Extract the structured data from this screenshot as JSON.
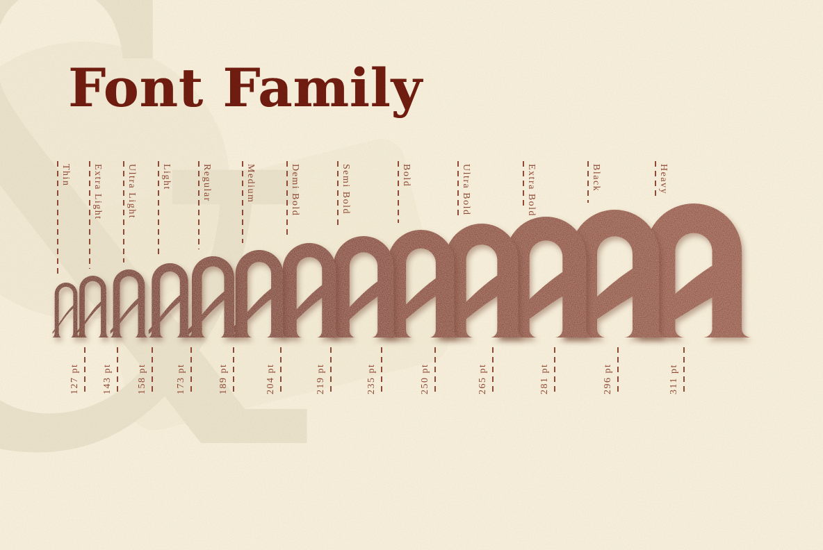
{
  "title": "Font Family",
  "watermark": {
    "glyph": "&"
  },
  "specimen": {
    "glyph": "A",
    "description": "13 weights shown as overlapping arch-A letterforms from smallest/lightest to largest/heaviest"
  },
  "weights": [
    {
      "label": "Thin",
      "size": "127 pt"
    },
    {
      "label": "Extra Light",
      "size": "143 pt"
    },
    {
      "label": "Ultra Light",
      "size": "158 pt"
    },
    {
      "label": "Light",
      "size": "173 pt"
    },
    {
      "label": "Regular",
      "size": "189 pt"
    },
    {
      "label": "Medium",
      "size": "204 pt"
    },
    {
      "label": "Demi Bold",
      "size": "219 pt"
    },
    {
      "label": "Semi Bold",
      "size": "235 pt"
    },
    {
      "label": "Bold",
      "size": "250 pt"
    },
    {
      "label": "Ultra Bold",
      "size": "265 pt"
    },
    {
      "label": "Extra Bold",
      "size": "281 pt"
    },
    {
      "label": "Black",
      "size": "296 pt"
    },
    {
      "label": "Heavy",
      "size": "311 pt"
    }
  ],
  "colors": {
    "background": "#f6efdb",
    "title": "#6d190d",
    "labels_and_dashes": "#8d4634",
    "letter_smallest": "#702a1c",
    "letter_largest": "#95503e",
    "watermark": "#e9e1cb"
  }
}
